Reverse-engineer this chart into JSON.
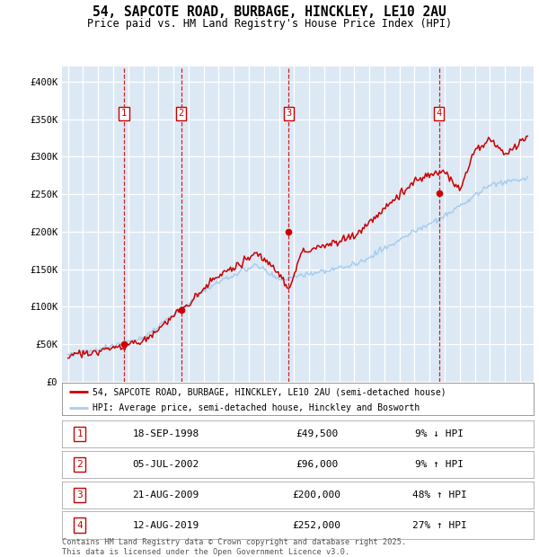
{
  "title": "54, SAPCOTE ROAD, BURBAGE, HINCKLEY, LE10 2AU",
  "subtitle": "Price paid vs. HM Land Registry's House Price Index (HPI)",
  "ylim": [
    0,
    420000
  ],
  "yticks": [
    0,
    50000,
    100000,
    150000,
    200000,
    250000,
    300000,
    350000,
    400000
  ],
  "ytick_labels": [
    "£0",
    "£50K",
    "£100K",
    "£150K",
    "£200K",
    "£250K",
    "£300K",
    "£350K",
    "£400K"
  ],
  "bg_color": "#dce9f5",
  "grid_color": "#ffffff",
  "red_line_color": "#cc0000",
  "blue_line_color": "#aaccee",
  "transactions": [
    {
      "num": 1,
      "date": "18-SEP-1998",
      "price": 49500,
      "year": 1998.72
    },
    {
      "num": 2,
      "date": "05-JUL-2002",
      "price": 96000,
      "year": 2002.51
    },
    {
      "num": 3,
      "date": "21-AUG-2009",
      "price": 200000,
      "year": 2009.64
    },
    {
      "num": 4,
      "date": "12-AUG-2019",
      "price": 252000,
      "year": 2019.62
    }
  ],
  "legend1": "54, SAPCOTE ROAD, BURBAGE, HINCKLEY, LE10 2AU (semi-detached house)",
  "legend2": "HPI: Average price, semi-detached house, Hinckley and Bosworth",
  "footer": "Contains HM Land Registry data © Crown copyright and database right 2025.\nThis data is licensed under the Open Government Licence v3.0.",
  "table_rows": [
    [
      "1",
      "18-SEP-1998",
      "£49,500",
      "9% ↓ HPI"
    ],
    [
      "2",
      "05-JUL-2002",
      "£96,000",
      "9% ↑ HPI"
    ],
    [
      "3",
      "21-AUG-2009",
      "£200,000",
      "48% ↑ HPI"
    ],
    [
      "4",
      "12-AUG-2019",
      "£252,000",
      "27% ↑ HPI"
    ]
  ],
  "xlim_left": 1994.6,
  "xlim_right": 2025.9
}
